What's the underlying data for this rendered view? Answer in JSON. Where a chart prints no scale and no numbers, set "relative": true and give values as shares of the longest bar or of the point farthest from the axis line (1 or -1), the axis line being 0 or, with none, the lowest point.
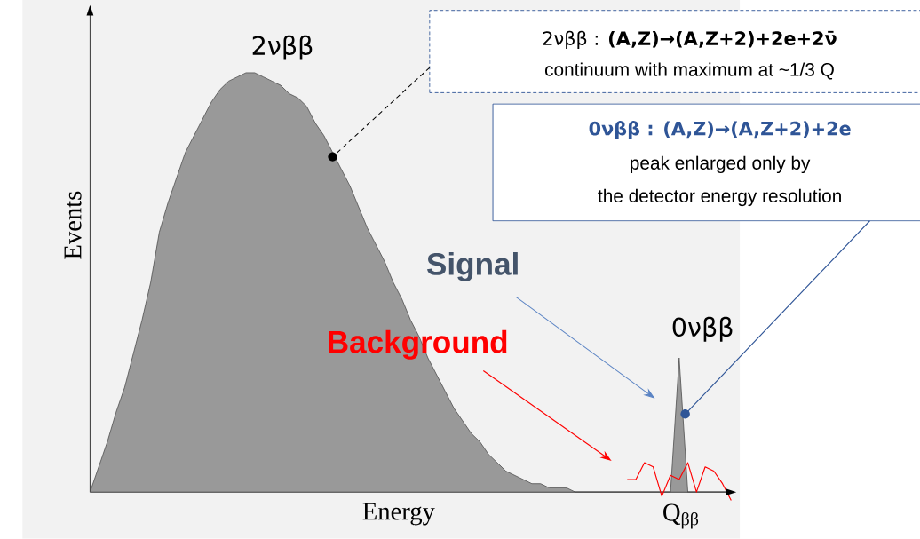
{
  "chart_data": {
    "type": "area",
    "relative": true,
    "xlabel": "Energy",
    "ylabel": "Events",
    "categories": [
      null,
      null,
      null,
      null,
      null,
      null,
      null,
      null,
      null,
      null,
      null,
      null,
      null,
      null,
      null,
      null,
      null,
      null,
      null,
      null,
      null,
      null,
      null,
      null,
      null,
      null,
      null,
      null,
      null,
      null,
      null,
      null,
      null,
      null,
      null,
      null,
      null,
      null,
      null,
      null,
      null,
      null,
      null,
      null,
      null,
      null,
      null,
      null,
      null,
      null,
      null,
      null,
      null,
      null,
      null,
      null,
      null,
      null,
      null,
      null,
      null,
      null,
      null,
      null,
      null,
      null,
      null,
      null,
      null,
      null,
      null,
      null,
      null,
      null,
      null
    ],
    "series": [
      {
        "color": "#999999",
        "values": [
          0,
          0.06,
          0.12,
          0.19,
          0.25,
          0.33,
          0.41,
          0.5,
          0.62,
          0.69,
          0.75,
          0.81,
          0.85,
          0.89,
          0.93,
          0.96,
          0.98,
          0.99,
          1,
          1,
          0.99,
          0.98,
          0.97,
          0.95,
          0.94,
          0.92,
          0.88,
          0.85,
          0.81,
          0.77,
          0.73,
          0.68,
          0.63,
          0.59,
          0.55,
          0.5,
          0.46,
          0.41,
          0.37,
          0.32,
          0.28,
          0.24,
          0.2,
          0.17,
          0.14,
          0.12,
          0.09,
          0.07,
          0.05,
          0.04,
          0.03,
          0.02,
          0.02,
          0.01,
          0.01,
          0.01,
          0,
          0,
          0,
          0,
          0,
          0,
          0,
          0,
          0,
          0,
          0,
          0,
          0.32,
          0,
          0,
          0,
          0,
          0,
          0
        ]
      },
      {
        "type": "line",
        "color": "#ff0000",
        "values": [
          null,
          null,
          null,
          null,
          null,
          null,
          null,
          null,
          null,
          null,
          null,
          null,
          null,
          null,
          null,
          null,
          null,
          null,
          null,
          null,
          null,
          null,
          null,
          null,
          null,
          null,
          null,
          null,
          null,
          null,
          null,
          null,
          null,
          null,
          null,
          null,
          null,
          null,
          null,
          null,
          null,
          null,
          null,
          null,
          null,
          null,
          null,
          null,
          null,
          null,
          null,
          null,
          null,
          null,
          null,
          null,
          null,
          null,
          null,
          null,
          null,
          null,
          0.03,
          0.03,
          0.07,
          0.06,
          -0.01,
          0.04,
          0.03,
          0.07,
          0,
          0.06,
          0.05,
          0.02,
          -0.02
        ]
      }
    ],
    "annotations": [
      "2νββ",
      "0νββ",
      "**Signal**",
      "**Background**",
      "2νββ : **(A,Z)→(A,Z+2)+2e+2ν̄**",
      "continuum with maximum at ~1/3 Q",
      "**0νββ : (A,Z)→(A,Z+2)+2e**",
      "peak enlarged only by",
      "the detector energy resolution",
      "Q$_{ββ}$"
    ]
  }
}
